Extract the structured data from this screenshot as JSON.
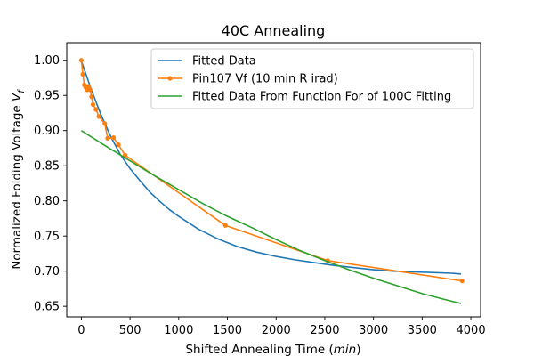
{
  "chart_data": {
    "type": "line",
    "title": "40C Annealing",
    "xlabel": "Shifted Annealing Time",
    "xlabel_unit": "min",
    "ylabel": "Normalized Folding Voltage",
    "ylabel_symbol": "V",
    "ylabel_subscript": "f",
    "xlim": [
      -150,
      4100
    ],
    "ylim": [
      0.635,
      1.025
    ],
    "x_ticks": [
      0,
      500,
      1000,
      1500,
      2000,
      2500,
      3000,
      3500,
      4000
    ],
    "y_ticks": [
      0.65,
      0.7,
      0.75,
      0.8,
      0.85,
      0.9,
      0.95,
      1.0
    ],
    "grid": false,
    "legend_position": "top-right",
    "series": [
      {
        "name": "Fitted Data",
        "color": "#1f77b4",
        "marker": false,
        "x": [
          0,
          100,
          200,
          300,
          400,
          500,
          600,
          700,
          800,
          900,
          1000,
          1200,
          1400,
          1600,
          1800,
          2000,
          2200,
          2400,
          2600,
          2800,
          3000,
          3200,
          3400,
          3600,
          3800,
          3900
        ],
        "y": [
          0.999,
          0.959,
          0.923,
          0.892,
          0.866,
          0.846,
          0.829,
          0.813,
          0.8,
          0.788,
          0.778,
          0.76,
          0.746,
          0.735,
          0.727,
          0.721,
          0.716,
          0.712,
          0.708,
          0.705,
          0.702,
          0.7,
          0.699,
          0.698,
          0.697,
          0.696
        ]
      },
      {
        "name": "Pin107 Vf (10 min R irad)",
        "color": "#ff7f0e",
        "marker": true,
        "x": [
          0,
          15,
          30,
          45,
          60,
          75,
          90,
          105,
          120,
          150,
          180,
          240,
          270,
          330,
          380,
          450,
          1480,
          2530,
          3910
        ],
        "y": [
          1.0,
          0.98,
          0.965,
          0.962,
          0.958,
          0.963,
          0.958,
          0.948,
          0.937,
          0.93,
          0.92,
          0.91,
          0.889,
          0.89,
          0.88,
          0.865,
          0.765,
          0.715,
          0.686
        ]
      },
      {
        "name": "Fitted Data From Function For of 100C Fitting",
        "color": "#2ca02c",
        "marker": false,
        "x": [
          0,
          250,
          500,
          750,
          1000,
          1250,
          1500,
          1750,
          2000,
          2250,
          2500,
          2750,
          3000,
          3250,
          3500,
          3750,
          3900
        ],
        "y": [
          0.9,
          0.878,
          0.857,
          0.836,
          0.816,
          0.796,
          0.778,
          0.762,
          0.745,
          0.729,
          0.715,
          0.702,
          0.69,
          0.679,
          0.668,
          0.659,
          0.654
        ]
      }
    ]
  }
}
